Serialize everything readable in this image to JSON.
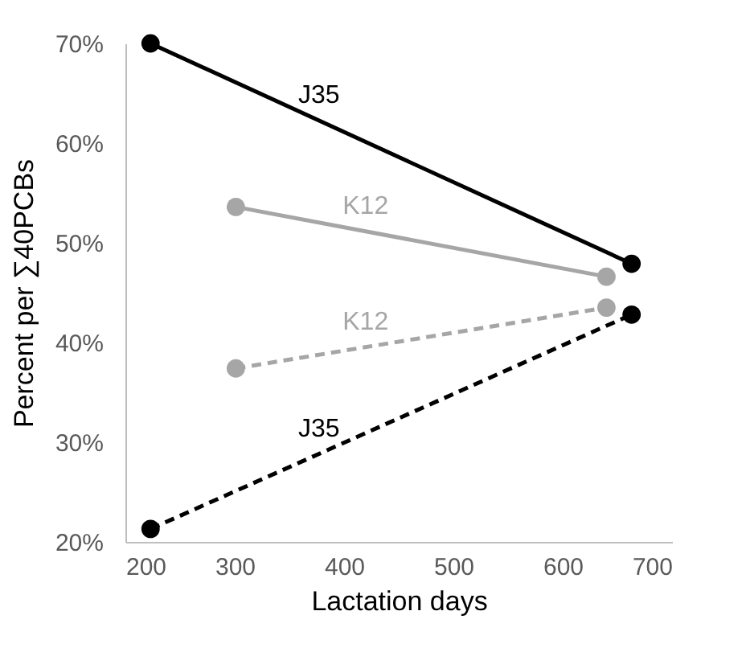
{
  "chart_data": {
    "type": "line",
    "xlabel": "Lactation days",
    "ylabel": "Percent per ∑40PCBs",
    "xlim": [
      200,
      700
    ],
    "xticks": [
      200,
      300,
      400,
      500,
      600,
      700
    ],
    "ylim": [
      20,
      70
    ],
    "yticks": [
      {
        "value": 20,
        "label": "20%"
      },
      {
        "value": 30,
        "label": "30%"
      },
      {
        "value": 40,
        "label": "40%"
      },
      {
        "value": 50,
        "label": "50%"
      },
      {
        "value": 60,
        "label": "60%"
      },
      {
        "value": 70,
        "label": "70%"
      }
    ],
    "grid": false,
    "legend": false,
    "marker": "circle",
    "series": [
      {
        "name": "J35",
        "color": "#000000",
        "line_style": "solid",
        "x": [
          223,
          663
        ],
        "values": [
          70.0,
          47.9
        ]
      },
      {
        "name": "K12",
        "color": "#a6a6a6",
        "line_style": "solid",
        "x": [
          301,
          640
        ],
        "values": [
          53.6,
          46.6
        ]
      },
      {
        "name": "K12",
        "color": "#a6a6a6",
        "line_style": "dashed",
        "x": [
          301,
          640
        ],
        "values": [
          37.4,
          43.5
        ]
      },
      {
        "name": "J35",
        "color": "#000000",
        "line_style": "dashed",
        "x": [
          223,
          663
        ],
        "values": [
          21.3,
          42.8
        ]
      }
    ]
  }
}
